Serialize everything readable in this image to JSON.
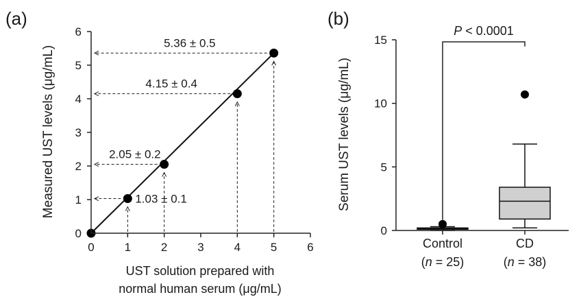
{
  "chart_data": [
    {
      "panel_label": "(a)",
      "type": "scatter",
      "xlabel_line1": "UST solution prepared with",
      "xlabel_line2": "normal human serum (μg/mL)",
      "ylabel": "Measured UST levels (μg/mL)",
      "xlim": [
        0,
        6
      ],
      "ylim": [
        0,
        6
      ],
      "xticks": [
        0,
        1,
        2,
        3,
        4,
        5,
        6
      ],
      "yticks": [
        0,
        1,
        2,
        3,
        4,
        5,
        6
      ],
      "points": [
        {
          "x": 0,
          "y": 0
        },
        {
          "x": 1,
          "y": 1.03
        },
        {
          "x": 2,
          "y": 2.05
        },
        {
          "x": 4,
          "y": 4.15
        },
        {
          "x": 5,
          "y": 5.36
        }
      ],
      "fit_line": {
        "x": [
          0,
          5
        ],
        "y": [
          0,
          5.36
        ]
      },
      "annotations": [
        {
          "text": "1.03 ± 0.1",
          "x": 1,
          "y": 1.03
        },
        {
          "text": "2.05 ± 0.2",
          "x": 2,
          "y": 2.05
        },
        {
          "text": "4.15 ± 0.4",
          "x": 4,
          "y": 4.15
        },
        {
          "text": "5.36 ± 0.5",
          "x": 5,
          "y": 5.36
        }
      ],
      "grid": false
    },
    {
      "panel_label": "(b)",
      "type": "box",
      "ylabel": "Serum UST levels (μg/mL)",
      "ylim": [
        0,
        15
      ],
      "yticks": [
        0,
        5,
        10,
        15
      ],
      "significance": {
        "prefix": "P",
        "text": " < 0.0001"
      },
      "groups": [
        {
          "name": "Control",
          "n_label_pre": "(",
          "n_label_var": "n",
          "n_label_post": " = 25)",
          "min": 0.0,
          "q1": 0.1,
          "median": 0.15,
          "q3": 0.2,
          "max": 0.3,
          "outliers": [
            0.5
          ],
          "fill": "#d0d0d0"
        },
        {
          "name": "CD",
          "n_label_pre": "(",
          "n_label_var": "n",
          "n_label_post": " = 38)",
          "min": 0.2,
          "q1": 0.9,
          "median": 2.3,
          "q3": 3.4,
          "max": 6.8,
          "outliers": [
            10.7
          ],
          "fill": "#d0d0d0"
        }
      ],
      "grid": false
    }
  ]
}
